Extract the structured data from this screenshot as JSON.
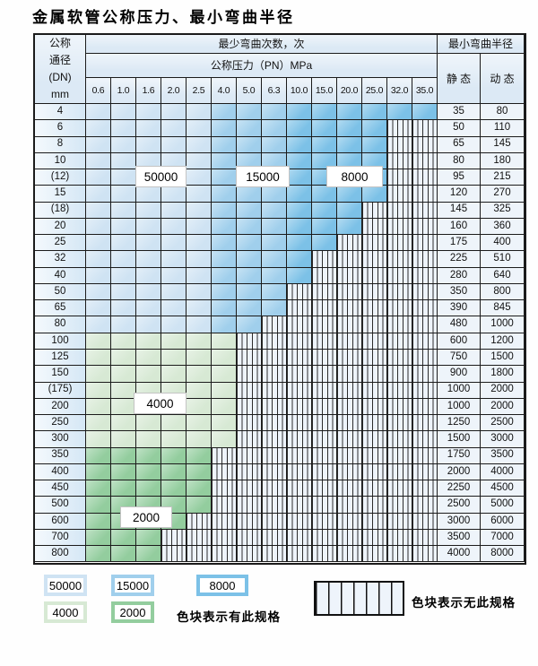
{
  "title": "金属软管公称压力、最小弯曲半径",
  "table": {
    "corner_lines": [
      "公称",
      "通径",
      "(DN)",
      "mm"
    ],
    "bend_cycles_header": "最少弯曲次数，次",
    "pressure_header": "公称压力（PN）MPa",
    "radius_header": "最小弯曲半径",
    "static_label": "静 态",
    "dynamic_label": "动 态",
    "pressure_columns": [
      "0.6",
      "1.0",
      "1.6",
      "2.0",
      "2.5",
      "4.0",
      "5.0",
      "6.3",
      "10.0",
      "15.0",
      "20.0",
      "25.0",
      "32.0",
      "35.0"
    ],
    "cycle_bands_note": {
      "blue_rows_50000_columns": "0.6-2.5",
      "blue_rows_15000_columns": "4.0-6.3",
      "blue_rows_8000_columns": "10.0-35.0",
      "green_light_rows_cycles": "4000",
      "green_dark_rows_cycles": "2000",
      "uncolored_cells": "hatched = no such specification"
    },
    "rows": [
      {
        "dn": "4",
        "colored_cols": 14,
        "palette": "blue",
        "static": "35",
        "dynamic": "80"
      },
      {
        "dn": "6",
        "colored_cols": 12,
        "palette": "blue",
        "static": "50",
        "dynamic": "110"
      },
      {
        "dn": "8",
        "colored_cols": 12,
        "palette": "blue",
        "static": "65",
        "dynamic": "145"
      },
      {
        "dn": "10",
        "colored_cols": 12,
        "palette": "blue",
        "static": "80",
        "dynamic": "180"
      },
      {
        "dn": "(12)",
        "colored_cols": 12,
        "palette": "blue",
        "static": "95",
        "dynamic": "215"
      },
      {
        "dn": "15",
        "colored_cols": 12,
        "palette": "blue",
        "static": "120",
        "dynamic": "270"
      },
      {
        "dn": "(18)",
        "colored_cols": 11,
        "palette": "blue",
        "static": "145",
        "dynamic": "325"
      },
      {
        "dn": "20",
        "colored_cols": 11,
        "palette": "blue",
        "static": "160",
        "dynamic": "360"
      },
      {
        "dn": "25",
        "colored_cols": 10,
        "palette": "blue",
        "static": "175",
        "dynamic": "400"
      },
      {
        "dn": "32",
        "colored_cols": 9,
        "palette": "blue",
        "static": "225",
        "dynamic": "510"
      },
      {
        "dn": "40",
        "colored_cols": 9,
        "palette": "blue",
        "static": "280",
        "dynamic": "640"
      },
      {
        "dn": "50",
        "colored_cols": 8,
        "palette": "blue",
        "static": "350",
        "dynamic": "800"
      },
      {
        "dn": "65",
        "colored_cols": 8,
        "palette": "blue",
        "static": "390",
        "dynamic": "845"
      },
      {
        "dn": "80",
        "colored_cols": 7,
        "palette": "blue",
        "static": "480",
        "dynamic": "1000"
      },
      {
        "dn": "100",
        "colored_cols": 6,
        "palette": "green_light",
        "static": "600",
        "dynamic": "1200"
      },
      {
        "dn": "125",
        "colored_cols": 6,
        "palette": "green_light",
        "static": "750",
        "dynamic": "1500"
      },
      {
        "dn": "150",
        "colored_cols": 6,
        "palette": "green_light",
        "static": "900",
        "dynamic": "1800"
      },
      {
        "dn": "(175)",
        "colored_cols": 6,
        "palette": "green_light",
        "static": "1000",
        "dynamic": "2000"
      },
      {
        "dn": "200",
        "colored_cols": 6,
        "palette": "green_light",
        "static": "1000",
        "dynamic": "2000"
      },
      {
        "dn": "250",
        "colored_cols": 6,
        "palette": "green_light",
        "static": "1250",
        "dynamic": "2500"
      },
      {
        "dn": "300",
        "colored_cols": 6,
        "palette": "green_light",
        "static": "1500",
        "dynamic": "3000"
      },
      {
        "dn": "350",
        "colored_cols": 5,
        "palette": "green_dark",
        "static": "1750",
        "dynamic": "3500"
      },
      {
        "dn": "400",
        "colored_cols": 5,
        "palette": "green_dark",
        "static": "2000",
        "dynamic": "4000"
      },
      {
        "dn": "450",
        "colored_cols": 5,
        "palette": "green_dark",
        "static": "2250",
        "dynamic": "4500"
      },
      {
        "dn": "500",
        "colored_cols": 5,
        "palette": "green_dark",
        "static": "2500",
        "dynamic": "5000"
      },
      {
        "dn": "600",
        "colored_cols": 4,
        "palette": "green_dark",
        "static": "3000",
        "dynamic": "6000"
      },
      {
        "dn": "700",
        "colored_cols": 3,
        "palette": "green_dark",
        "static": "3500",
        "dynamic": "7000"
      },
      {
        "dn": "800",
        "colored_cols": 3,
        "palette": "green_dark",
        "static": "4000",
        "dynamic": "8000"
      }
    ]
  },
  "overlays": {
    "cycles_50000": "50000",
    "cycles_15000": "15000",
    "cycles_8000": "8000",
    "cycles_4000": "4000",
    "cycles_2000": "2000"
  },
  "legend": {
    "swatches": [
      {
        "label": "50000"
      },
      {
        "label": "15000"
      },
      {
        "label": "8000"
      },
      {
        "label": "4000"
      },
      {
        "label": "2000"
      }
    ],
    "has_spec_text": "色块表示有此规格",
    "no_spec_text": "色块表示无此规格"
  },
  "colors": {
    "cycles_50000": "#cfe3f3",
    "cycles_15000": "#a0cfec",
    "cycles_8000": "#7cc1e7",
    "cycles_4000": "#d7e9d4",
    "cycles_2000": "#93cd9e",
    "hatch_background": "#eef4fb",
    "header_background": "#dce9f5",
    "grid_line": "#1b1b1b"
  }
}
